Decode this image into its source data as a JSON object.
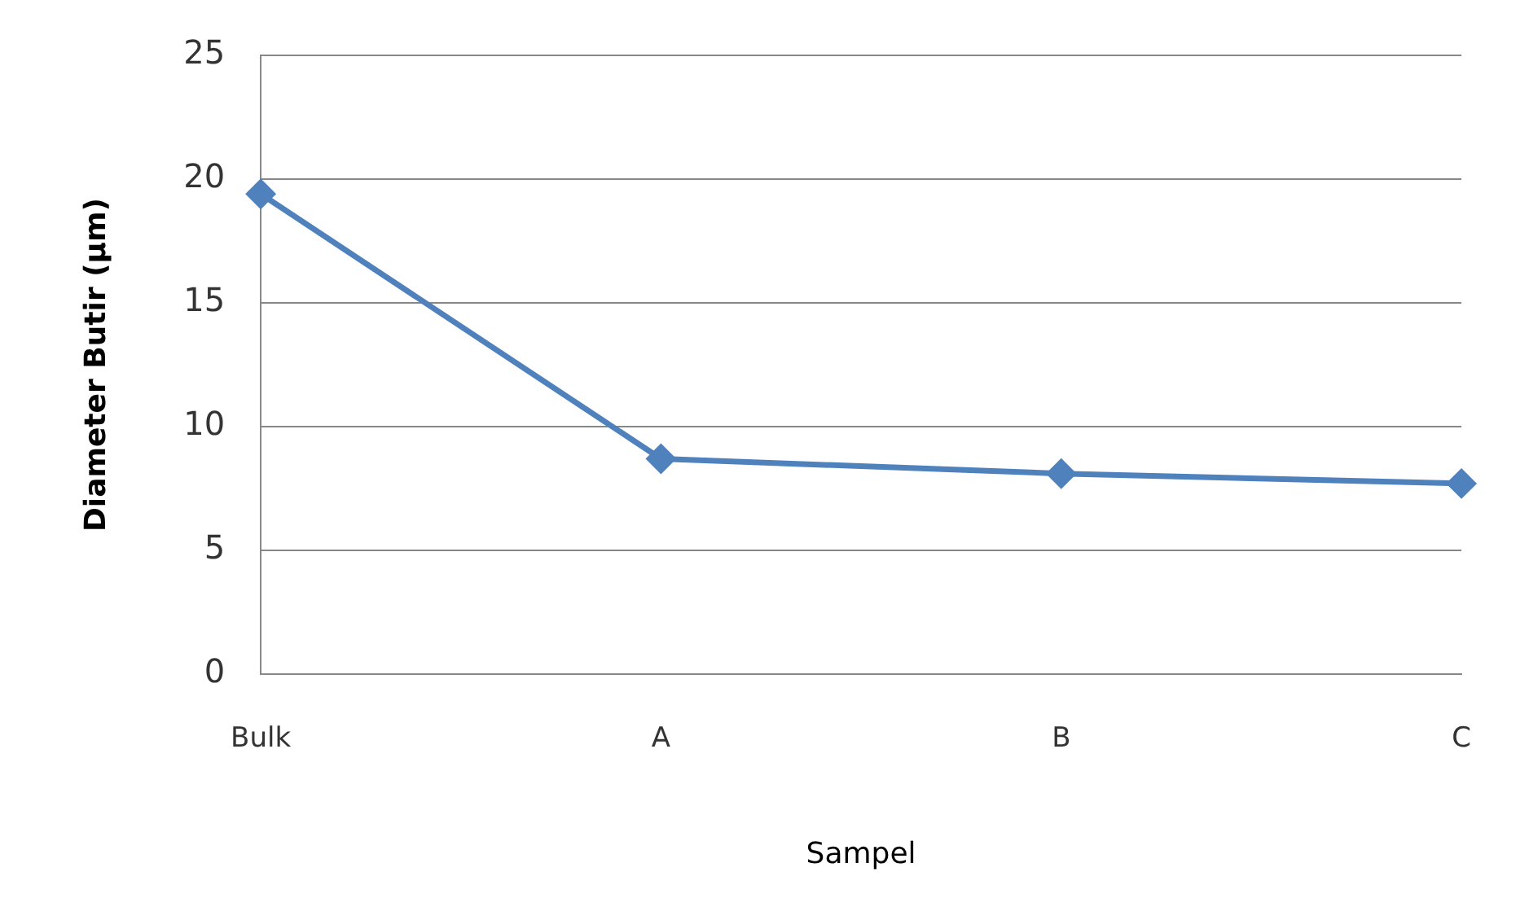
{
  "chart_data": {
    "type": "line",
    "xlabel": "Sampel",
    "ylabel": "Diameter Butir (µm)",
    "categories": [
      "Bulk",
      "A",
      "B",
      "C"
    ],
    "series": [
      {
        "color": "#4f81bd",
        "values": [
          19.4,
          8.7,
          8.1,
          7.7
        ]
      }
    ],
    "ylim": [
      0,
      25
    ],
    "yticks": [
      0,
      5,
      10,
      15,
      20,
      25
    ],
    "grid": "y",
    "legend": false,
    "marker": "diamond"
  }
}
